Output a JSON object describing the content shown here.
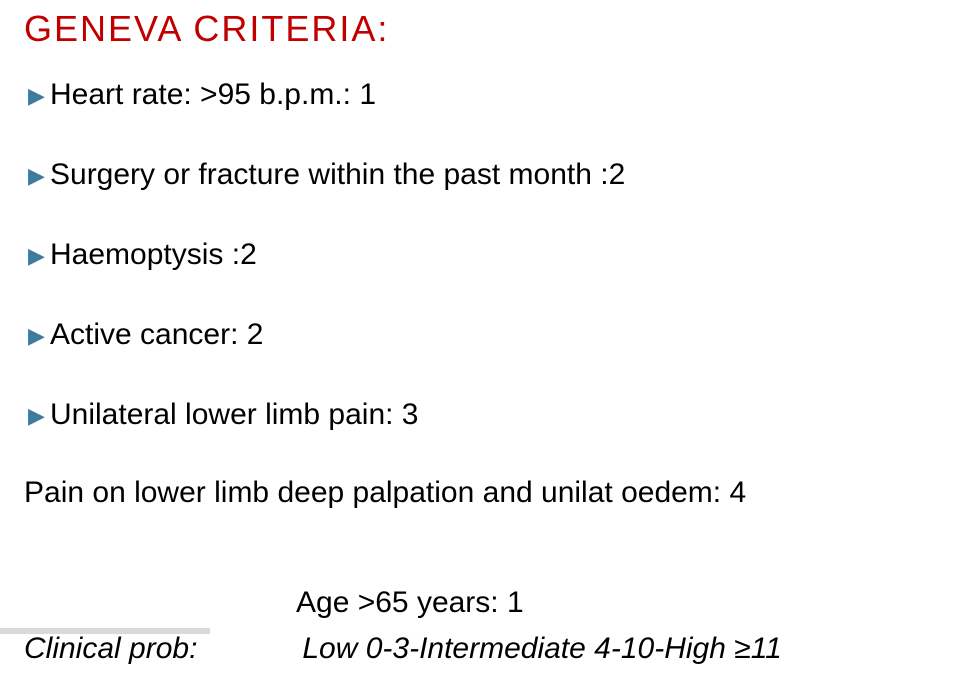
{
  "title": "GENEVA  CRITERIA:",
  "title_color": "#c00000",
  "bullet_color": "#3e7ba0",
  "text_color": "#000000",
  "background_color": "#ffffff",
  "font_family": "Lucida Sans Unicode",
  "title_fontsize": 36,
  "body_fontsize": 30,
  "items": [
    "Heart rate:  >95 b.p.m.:      1",
    "Surgery or fracture within the past month :2",
    "Haemoptysis :2",
    "Active cancer: 2",
    "Unilateral lower limb pain: 3"
  ],
  "pain_line": "Pain on lower limb deep  palpation and unilat oedem: 4",
  "age_line": "Age >65 years: 1",
  "footer_label": "Clinical prob:",
  "footer_value": "Low 0-3-Intermediate 4-10-High ≥11"
}
